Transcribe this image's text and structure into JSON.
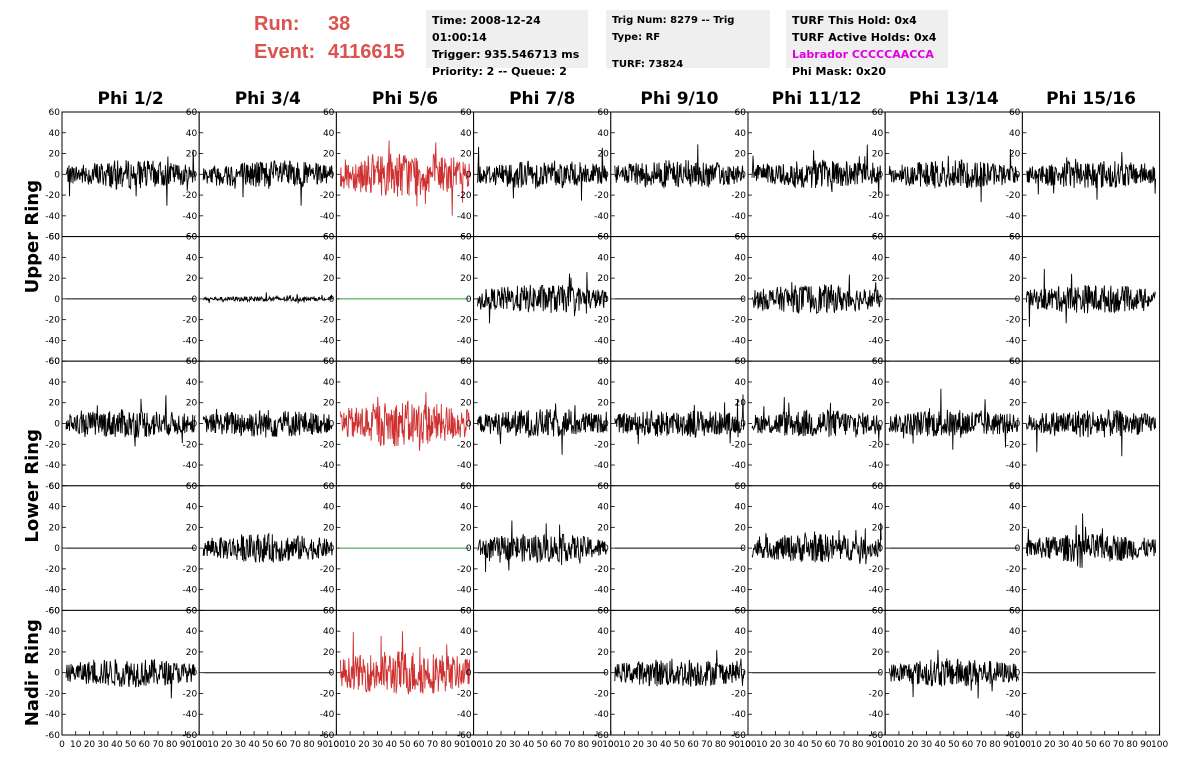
{
  "header": {
    "run_label": "Run:",
    "run_value": "38",
    "event_label": "Event:",
    "event_value": "4116615",
    "box1": {
      "time": "Time: 2008-12-24 01:00:14",
      "trigger": "Trigger: 935.546713 ms",
      "priority": "Priority: 2 -- Queue: 2"
    },
    "box2": {
      "trig": "Trig Num: 8279 -- Trig Type: RF",
      "turf": "TURF: 73824"
    },
    "box3": {
      "this_hold": "TURF This Hold: 0x4",
      "active_holds": "TURF Active Holds: 0x4",
      "labrador": "Labrador CCCCCAACCA",
      "phi_mask": "Phi Mask: 0x20"
    }
  },
  "colors": {
    "normal_trace": "#000000",
    "masked_trace": "#d03030",
    "flat_green": "#2a9d2a",
    "run_text": "#d9534f",
    "labrador_text": "#e000e0"
  },
  "chart_data": {
    "type": "line",
    "columns": [
      "Phi 1/2",
      "Phi 3/4",
      "Phi 5/6",
      "Phi 7/8",
      "Phi 9/10",
      "Phi 11/12",
      "Phi 13/14",
      "Phi 15/16"
    ],
    "ring_labels": [
      "Upper Ring",
      "Lower Ring",
      "Nadir Ring"
    ],
    "ylim": [
      -60,
      60
    ],
    "yticks": [
      -60,
      -40,
      -20,
      0,
      20,
      40,
      60
    ],
    "xlim": [
      0,
      100
    ],
    "xticks": [
      0,
      10,
      20,
      30,
      40,
      50,
      60,
      70,
      80,
      90,
      100
    ],
    "panels": [
      [
        "noise",
        "noise",
        "red",
        "noise",
        "noise",
        "noise",
        "noise",
        "noise"
      ],
      [
        "flat",
        "low",
        "green",
        "noise",
        "flat",
        "noise",
        "flat",
        "noise"
      ],
      [
        "noise",
        "noise",
        "red",
        "noise",
        "noise",
        "noise",
        "noise",
        "noise"
      ],
      [
        "flat",
        "noise",
        "green",
        "noise",
        "flat",
        "noise",
        "flat",
        "noise"
      ],
      [
        "noise",
        "flat",
        "red",
        "flat",
        "noise",
        "flat",
        "noise",
        "flat"
      ]
    ],
    "amplitude": {
      "noise": 14,
      "red": 22,
      "low": 2.5,
      "flat": 0,
      "green": 0
    }
  }
}
